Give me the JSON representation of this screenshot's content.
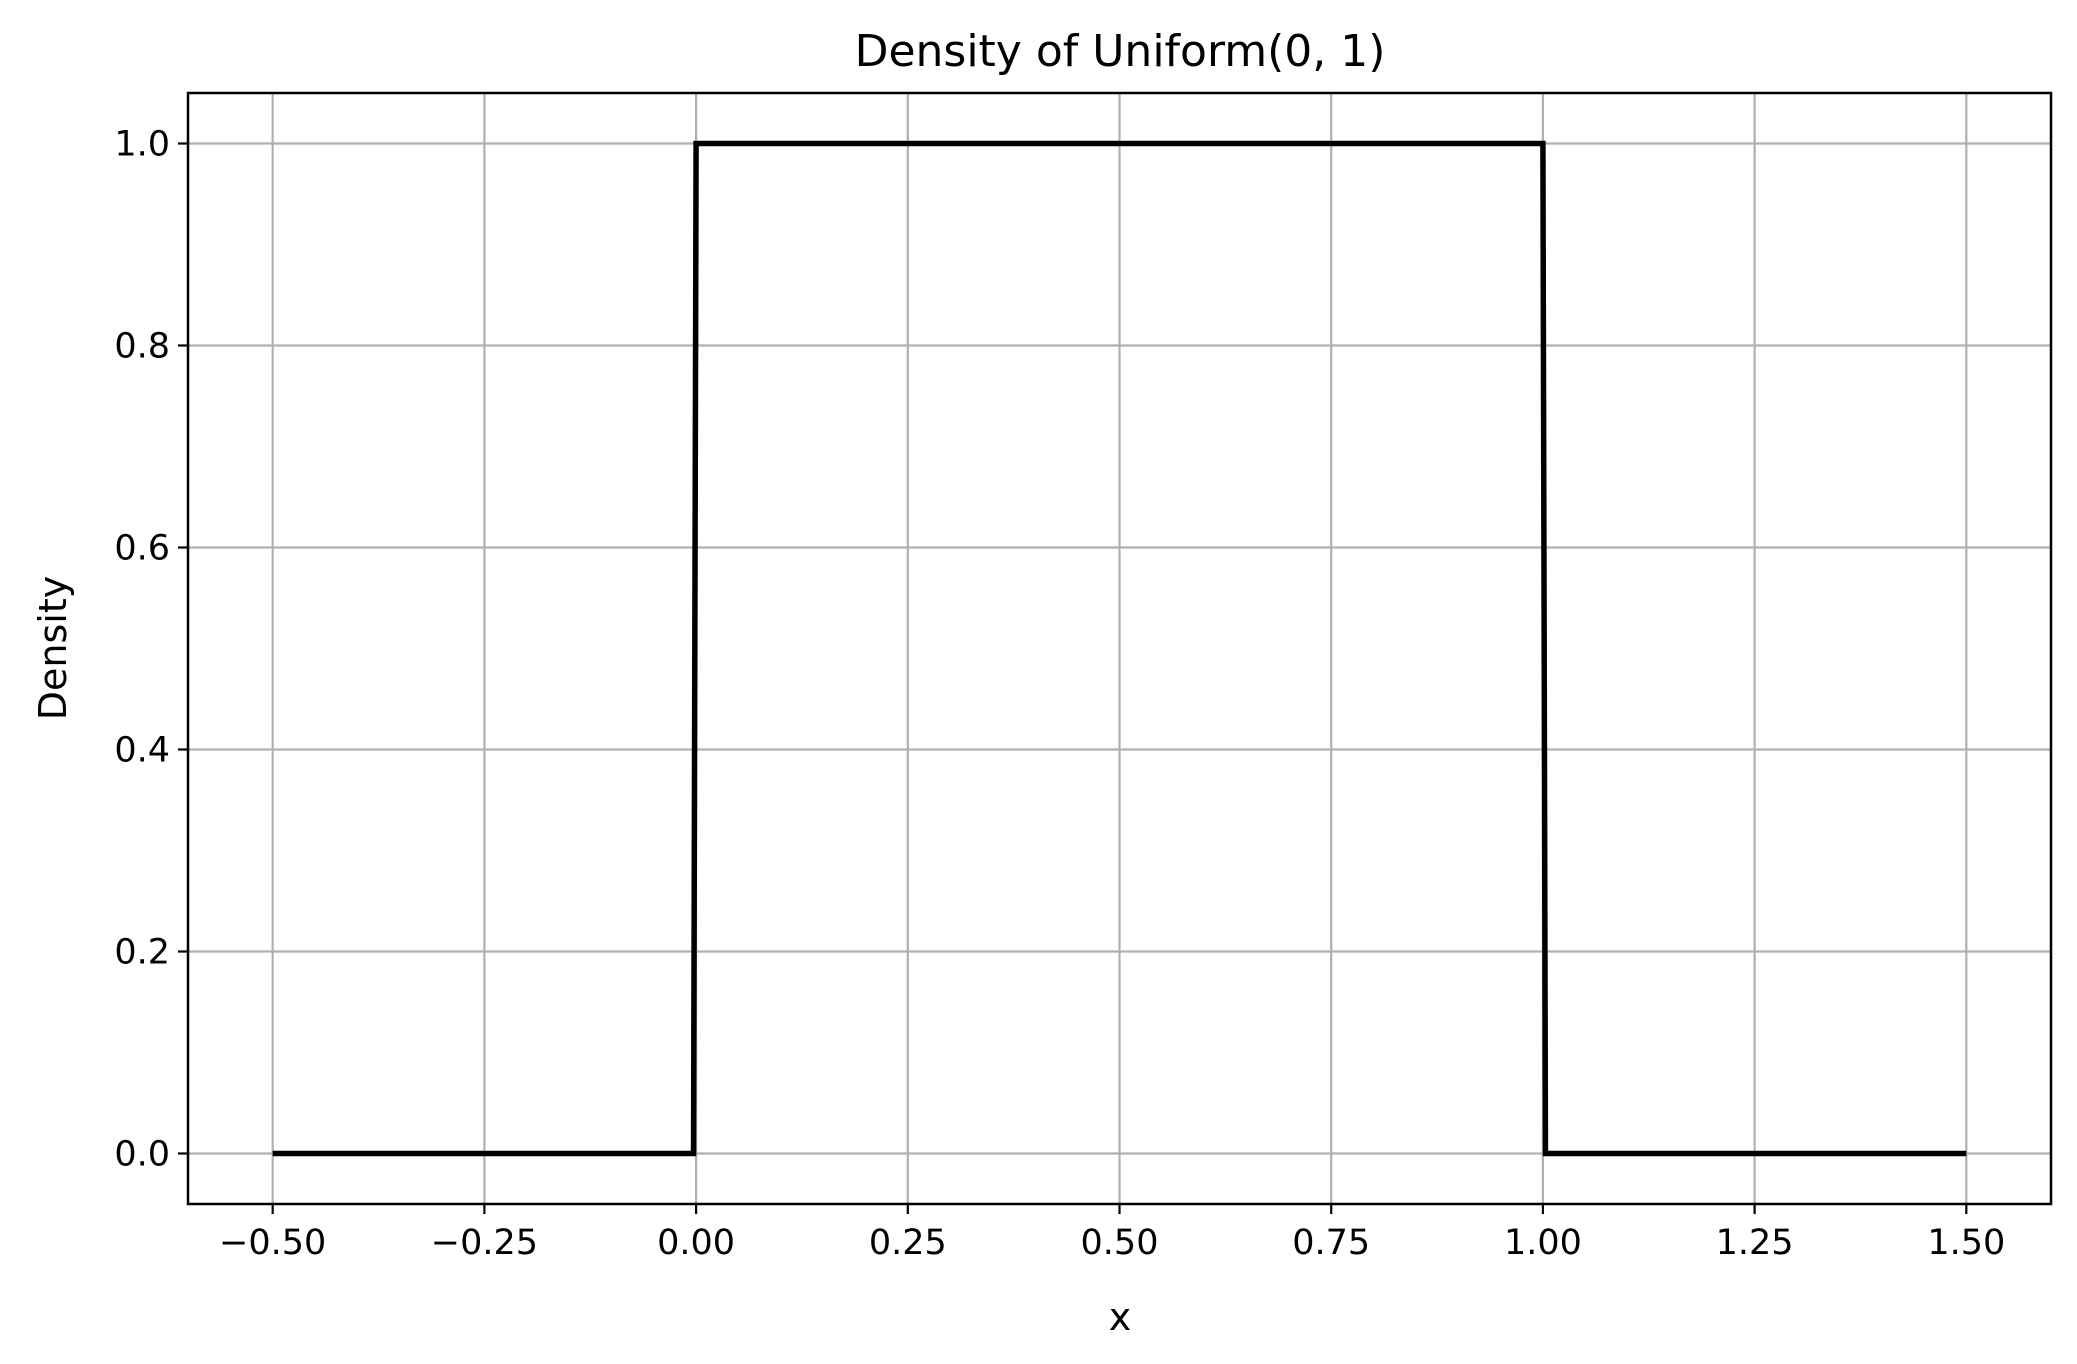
{
  "chart_data": {
    "type": "line",
    "title": "Density of Uniform(0, 1)",
    "xlabel": "x",
    "ylabel": "Density",
    "xlim": [
      -0.6,
      1.6
    ],
    "ylim": [
      -0.05,
      1.05
    ],
    "grid": true,
    "legend": "none",
    "x_ticks": [
      -0.5,
      -0.25,
      0.0,
      0.25,
      0.5,
      0.75,
      1.0,
      1.25,
      1.5
    ],
    "x_tick_labels": [
      "−0.50",
      "−0.25",
      "0.00",
      "0.25",
      "0.50",
      "0.75",
      "1.00",
      "1.25",
      "1.50"
    ],
    "y_ticks": [
      0.0,
      0.2,
      0.4,
      0.6,
      0.8,
      1.0
    ],
    "y_tick_labels": [
      "0.0",
      "0.2",
      "0.4",
      "0.6",
      "0.8",
      "1.0"
    ],
    "series": [
      {
        "color": "#000000",
        "x": [
          -0.5,
          -0.003,
          0.0,
          1.0,
          1.003,
          1.5
        ],
        "y": [
          0.0,
          0.0,
          1.0,
          1.0,
          0.0,
          0.0
        ]
      }
    ]
  }
}
